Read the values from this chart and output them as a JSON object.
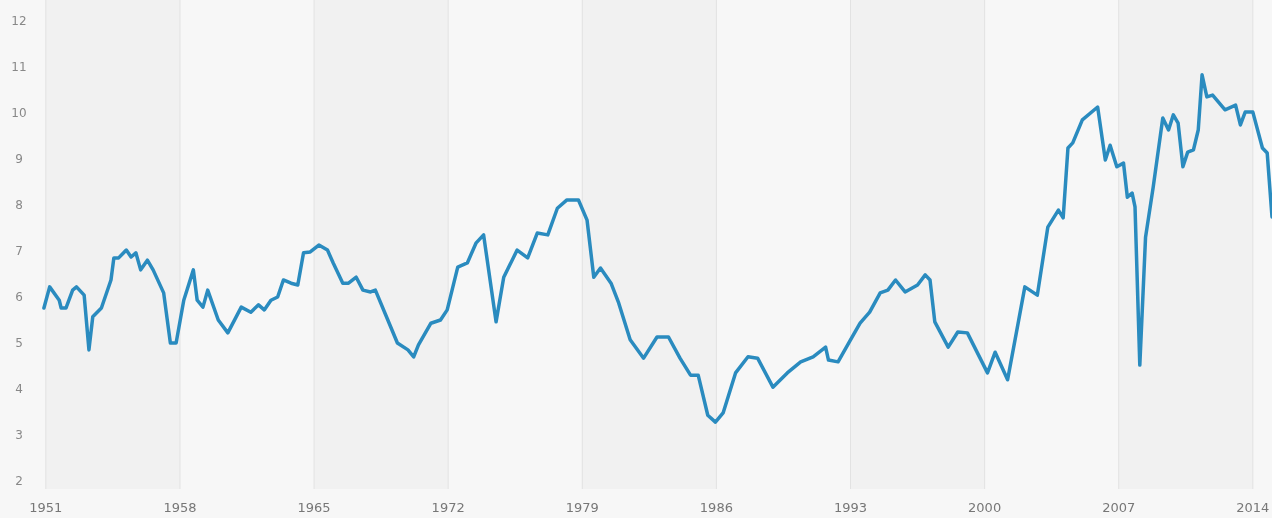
{
  "chart_data": {
    "type": "line",
    "x": [
      1950.9,
      1951.2,
      1951.7,
      1951.8,
      1952.05,
      1952.4,
      1952.6,
      1953.0,
      1953.25,
      1953.45,
      1953.9,
      1954.4,
      1954.55,
      1954.8,
      1955.2,
      1955.45,
      1955.7,
      1955.95,
      1956.3,
      1956.6,
      1957.15,
      1957.5,
      1957.8,
      1958.2,
      1958.7,
      1958.9,
      1959.2,
      1959.45,
      1960.0,
      1960.5,
      1961.2,
      1961.7,
      1962.1,
      1962.4,
      1962.75,
      1963.1,
      1963.4,
      1963.8,
      1964.15,
      1964.45,
      1964.8,
      1965.25,
      1965.7,
      1966.0,
      1966.5,
      1966.8,
      1967.2,
      1967.55,
      1967.95,
      1968.2,
      1968.85,
      1969.35,
      1969.9,
      1970.2,
      1970.45,
      1971.1,
      1971.6,
      1971.95,
      1972.5,
      1973.0,
      1973.45,
      1973.85,
      1974.5,
      1974.9,
      1975.6,
      1976.15,
      1976.65,
      1977.2,
      1977.7,
      1978.2,
      1978.8,
      1979.25,
      1979.6,
      1979.95,
      1980.5,
      1980.9,
      1981.5,
      1982.2,
      1982.9,
      1983.5,
      1984.1,
      1984.65,
      1985.05,
      1985.55,
      1985.95,
      1986.35,
      1987.0,
      1987.65,
      1988.15,
      1988.95,
      1989.7,
      1990.4,
      1991.05,
      1991.7,
      1991.85,
      1992.35,
      1993.0,
      1993.5,
      1994.0,
      1994.55,
      1994.95,
      1995.35,
      1995.85,
      1996.5,
      1996.9,
      1997.15,
      1997.4,
      1998.1,
      1998.6,
      1999.1,
      2000.15,
      2000.55,
      2001.2,
      2002.1,
      2002.75,
      2003.3,
      2003.85,
      2004.1,
      2004.35,
      2004.6,
      2005.1,
      2005.9,
      2006.3,
      2006.55,
      2006.9,
      2007.25,
      2007.45,
      2007.7,
      2007.85,
      2008.1,
      2008.4,
      2008.8,
      2009.3,
      2009.6,
      2009.85,
      2010.1,
      2010.35,
      2010.6,
      2010.9,
      2011.15,
      2011.35,
      2011.6,
      2011.9,
      2012.55,
      2013.1,
      2013.35,
      2013.6,
      2014.0,
      2014.5,
      2014.75,
      2015.0
    ],
    "series": [
      {
        "color": "#2a8bbf",
        "values": [
          5.76,
          6.22,
          5.93,
          5.76,
          5.76,
          6.15,
          6.22,
          6.04,
          4.85,
          5.57,
          5.76,
          6.37,
          6.85,
          6.85,
          7.02,
          6.87,
          6.96,
          6.59,
          6.8,
          6.59,
          6.09,
          5.0,
          5.0,
          5.93,
          6.59,
          5.93,
          5.78,
          6.15,
          5.5,
          5.22,
          5.78,
          5.67,
          5.83,
          5.72,
          5.93,
          6.0,
          6.37,
          6.3,
          6.26,
          6.96,
          6.98,
          7.13,
          7.02,
          6.74,
          6.3,
          6.3,
          6.43,
          6.15,
          6.11,
          6.15,
          5.5,
          5.0,
          4.85,
          4.7,
          4.96,
          5.43,
          5.5,
          5.72,
          6.65,
          6.74,
          7.17,
          7.35,
          5.46,
          6.43,
          7.02,
          6.85,
          7.39,
          7.35,
          7.93,
          8.11,
          8.11,
          7.67,
          6.43,
          6.63,
          6.3,
          5.87,
          5.07,
          4.67,
          5.13,
          5.13,
          4.67,
          4.3,
          4.3,
          3.43,
          3.28,
          3.48,
          4.35,
          4.7,
          4.67,
          4.04,
          4.35,
          4.59,
          4.7,
          4.91,
          4.63,
          4.59,
          5.07,
          5.43,
          5.67,
          6.09,
          6.15,
          6.37,
          6.11,
          6.26,
          6.48,
          6.37,
          5.46,
          4.91,
          5.24,
          5.22,
          4.35,
          4.8,
          4.2,
          6.22,
          6.04,
          7.52,
          7.89,
          7.72,
          9.24,
          9.35,
          9.85,
          10.13,
          8.98,
          9.3,
          8.83,
          8.91,
          8.17,
          8.26,
          7.96,
          4.52,
          7.3,
          8.39,
          9.89,
          9.63,
          9.96,
          9.78,
          8.83,
          9.15,
          9.2,
          9.63,
          10.83,
          10.35,
          10.39,
          10.07,
          10.17,
          9.74,
          10.02,
          10.02,
          9.24,
          9.13,
          7.74
        ]
      }
    ],
    "xlim": [
      1950.8,
      2015.0
    ],
    "xticks": [
      1951,
      1958,
      1965,
      1972,
      1979,
      1986,
      1993,
      2000,
      2007,
      2014
    ],
    "ylim": [
      2,
      12
    ],
    "yticks": [
      2,
      3,
      4,
      5,
      6,
      7,
      8,
      9,
      10,
      11,
      12
    ],
    "grid": "x",
    "line_style": "solid",
    "marker": "none"
  }
}
